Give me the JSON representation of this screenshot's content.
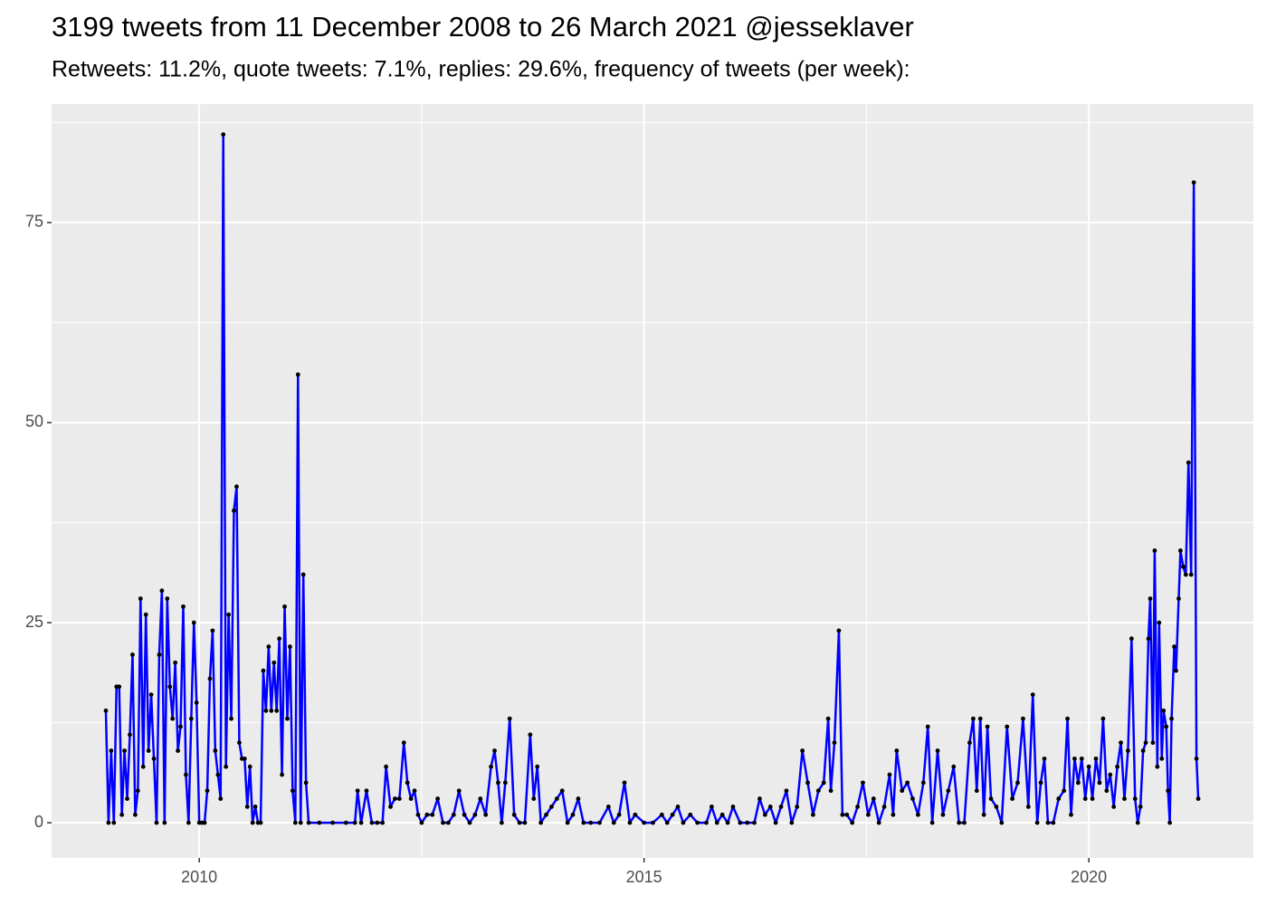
{
  "chart_data": {
    "type": "line",
    "title": "3199 tweets from 11 December 2008 to 26 March 2021 @jesseklaver",
    "subtitle": "Retweets: 11.2%, quote tweets: 7.1%, replies: 29.6%, frequency of tweets (per week):",
    "x": [
      2008.95,
      2008.98,
      2009.01,
      2009.04,
      2009.07,
      2009.1,
      2009.13,
      2009.16,
      2009.19,
      2009.22,
      2009.25,
      2009.28,
      2009.31,
      2009.34,
      2009.37,
      2009.4,
      2009.43,
      2009.46,
      2009.49,
      2009.52,
      2009.55,
      2009.58,
      2009.61,
      2009.64,
      2009.67,
      2009.7,
      2009.73,
      2009.76,
      2009.79,
      2009.82,
      2009.85,
      2009.88,
      2009.91,
      2009.94,
      2009.97,
      2010.0,
      2010.03,
      2010.06,
      2010.09,
      2010.12,
      2010.15,
      2010.18,
      2010.21,
      2010.24,
      2010.27,
      2010.3,
      2010.33,
      2010.36,
      2010.39,
      2010.42,
      2010.45,
      2010.48,
      2010.51,
      2010.54,
      2010.57,
      2010.6,
      2010.63,
      2010.66,
      2010.69,
      2010.72,
      2010.75,
      2010.78,
      2010.81,
      2010.84,
      2010.87,
      2010.9,
      2010.93,
      2010.96,
      2010.99,
      2011.02,
      2011.05,
      2011.08,
      2011.11,
      2011.14,
      2011.17,
      2011.2,
      2011.23,
      2011.35,
      2011.5,
      2011.65,
      2011.75,
      2011.78,
      2011.82,
      2011.88,
      2011.94,
      2012.0,
      2012.06,
      2012.1,
      2012.15,
      2012.2,
      2012.25,
      2012.3,
      2012.34,
      2012.38,
      2012.42,
      2012.46,
      2012.5,
      2012.56,
      2012.62,
      2012.68,
      2012.74,
      2012.8,
      2012.86,
      2012.92,
      2012.98,
      2013.04,
      2013.1,
      2013.16,
      2013.22,
      2013.28,
      2013.32,
      2013.36,
      2013.4,
      2013.44,
      2013.49,
      2013.54,
      2013.6,
      2013.66,
      2013.72,
      2013.76,
      2013.8,
      2013.84,
      2013.9,
      2013.96,
      2014.02,
      2014.08,
      2014.14,
      2014.2,
      2014.26,
      2014.32,
      2014.4,
      2014.5,
      2014.6,
      2014.66,
      2014.72,
      2014.78,
      2014.84,
      2014.9,
      2015.0,
      2015.1,
      2015.2,
      2015.26,
      2015.32,
      2015.38,
      2015.44,
      2015.52,
      2015.6,
      2015.7,
      2015.76,
      2015.82,
      2015.88,
      2015.94,
      2016.0,
      2016.08,
      2016.16,
      2016.24,
      2016.3,
      2016.36,
      2016.42,
      2016.48,
      2016.54,
      2016.6,
      2016.66,
      2016.72,
      2016.78,
      2016.84,
      2016.9,
      2016.96,
      2017.02,
      2017.07,
      2017.1,
      2017.14,
      2017.19,
      2017.23,
      2017.28,
      2017.34,
      2017.4,
      2017.46,
      2017.52,
      2017.58,
      2017.64,
      2017.7,
      2017.76,
      2017.8,
      2017.84,
      2017.9,
      2017.96,
      2018.02,
      2018.08,
      2018.14,
      2018.19,
      2018.24,
      2018.3,
      2018.36,
      2018.42,
      2018.48,
      2018.54,
      2018.6,
      2018.66,
      2018.7,
      2018.74,
      2018.78,
      2018.82,
      2018.86,
      2018.9,
      2018.96,
      2019.02,
      2019.08,
      2019.14,
      2019.2,
      2019.26,
      2019.32,
      2019.37,
      2019.42,
      2019.46,
      2019.5,
      2019.54,
      2019.6,
      2019.66,
      2019.72,
      2019.76,
      2019.8,
      2019.84,
      2019.88,
      2019.92,
      2019.96,
      2020.0,
      2020.04,
      2020.08,
      2020.12,
      2020.16,
      2020.2,
      2020.24,
      2020.28,
      2020.32,
      2020.36,
      2020.4,
      2020.44,
      2020.48,
      2020.52,
      2020.55,
      2020.58,
      2020.61,
      2020.64,
      2020.67,
      2020.69,
      2020.72,
      2020.74,
      2020.77,
      2020.79,
      2020.82,
      2020.84,
      2020.87,
      2020.89,
      2020.91,
      2020.93,
      2020.96,
      2020.98,
      2021.01,
      2021.03,
      2021.06,
      2021.09,
      2021.12,
      2021.15,
      2021.18,
      2021.21,
      2021.23
    ],
    "series": [
      {
        "color": "#0000ff",
        "values": [
          14,
          0,
          9,
          0,
          17,
          17,
          1,
          9,
          3,
          11,
          21,
          1,
          4,
          28,
          7,
          26,
          9,
          16,
          8,
          0,
          21,
          29,
          0,
          28,
          17,
          13,
          20,
          9,
          12,
          27,
          6,
          0,
          13,
          25,
          15,
          0,
          0,
          0,
          4,
          18,
          24,
          9,
          6,
          3,
          86,
          7,
          26,
          13,
          39,
          42,
          10,
          8,
          8,
          2,
          7,
          0,
          2,
          0,
          0,
          19,
          14,
          22,
          14,
          20,
          14,
          23,
          6,
          27,
          13,
          22,
          4,
          0,
          56,
          0,
          31,
          5,
          0,
          0,
          0,
          0,
          0,
          4,
          0,
          4,
          0,
          0,
          0,
          7,
          2,
          3,
          3,
          10,
          5,
          3,
          4,
          1,
          0,
          1,
          1,
          3,
          0,
          0,
          1,
          4,
          1,
          0,
          1,
          3,
          1,
          7,
          9,
          5,
          0,
          5,
          13,
          1,
          0,
          0,
          11,
          3,
          7,
          0,
          1,
          2,
          3,
          4,
          0,
          1,
          3,
          0,
          0,
          0,
          2,
          0,
          1,
          5,
          0,
          1,
          0,
          0,
          1,
          0,
          1,
          2,
          0,
          1,
          0,
          0,
          2,
          0,
          1,
          0,
          2,
          0,
          0,
          0,
          3,
          1,
          2,
          0,
          2,
          4,
          0,
          2,
          9,
          5,
          1,
          4,
          5,
          13,
          4,
          10,
          24,
          1,
          1,
          0,
          2,
          5,
          1,
          3,
          0,
          2,
          6,
          1,
          9,
          4,
          5,
          3,
          1,
          5,
          12,
          0,
          9,
          1,
          4,
          7,
          0,
          0,
          10,
          13,
          4,
          13,
          1,
          12,
          3,
          2,
          0,
          12,
          3,
          5,
          13,
          2,
          16,
          0,
          5,
          8,
          0,
          0,
          3,
          4,
          13,
          1,
          8,
          5,
          8,
          3,
          7,
          3,
          8,
          5,
          13,
          4,
          6,
          2,
          7,
          10,
          3,
          9,
          23,
          3,
          0,
          2,
          9,
          10,
          23,
          28,
          10,
          34,
          7,
          25,
          8,
          14,
          12,
          4,
          0,
          13,
          22,
          19,
          28,
          34,
          32,
          31,
          45,
          31,
          80,
          8,
          3
        ]
      }
    ],
    "point_color": "#000000",
    "xlim": [
      2008.34,
      2021.85
    ],
    "xticks": [
      2010,
      2015,
      2020
    ],
    "ylim": [
      -4.4,
      89.8
    ],
    "yticks": [
      0,
      25,
      50,
      75
    ],
    "grid": true
  }
}
